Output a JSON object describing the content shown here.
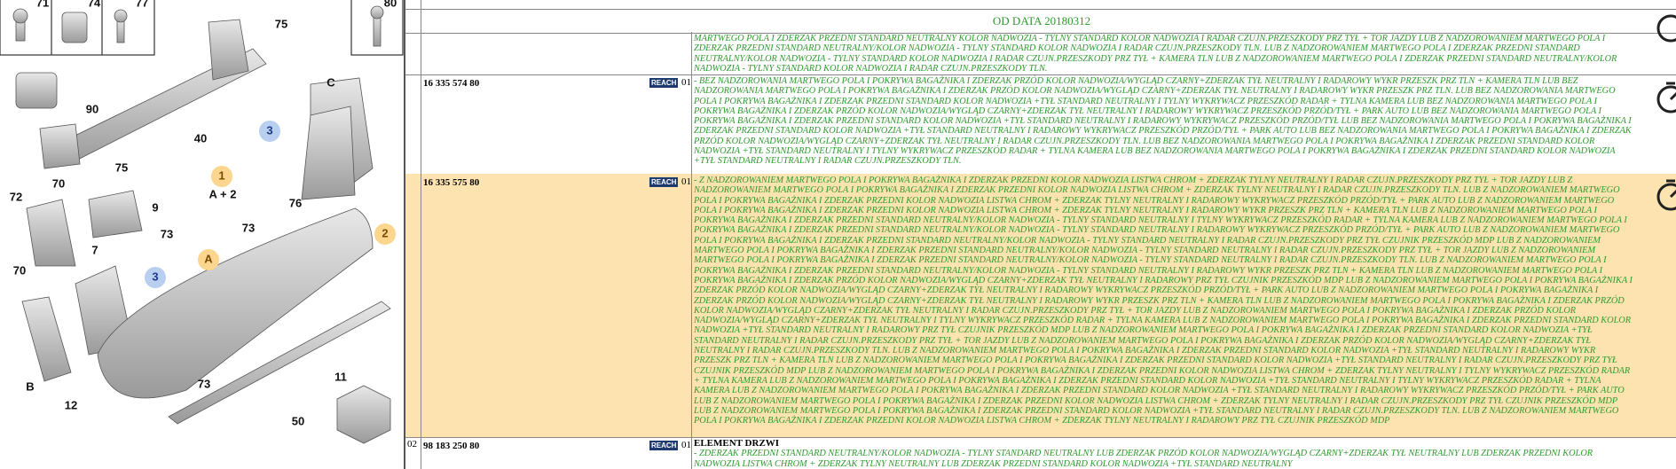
{
  "header": {
    "date_label": "OD DATA 20180312"
  },
  "diagram": {
    "labels": [
      "71",
      "74",
      "77",
      "80",
      "75",
      "90",
      "40",
      "75",
      "C",
      "3",
      "1",
      "A + 2",
      "70",
      "72",
      "9",
      "76",
      "73",
      "73",
      "7",
      "70",
      "3",
      "A",
      "2",
      "B",
      "73",
      "11",
      "12",
      "50"
    ]
  },
  "table": {
    "rows": [
      {
        "description": "MARTWEGO POLA I ZDERZAK PRZEDNI STANDARD NEUTRALNY KOLOR NADWOZIA - TYLNY STANDARD KOLOR NADWOZIA I RADAR CZUJN.PRZESZKODY PRZ TYŁ + TOR JAZDY LUB Z NADZOROWANIEM MARTWEGO POLA I ZDERZAK PRZEDNI STANDARD NEUTRALNY/KOLOR NADWOZIA - TYLNY STANDARD KOLOR NADWOZIA I RADAR CZUJN.PRZESZKODY TLN. LUB Z NADZOROWANIEM MARTWEGO POLA I ZDERZAK PRZEDNI STANDARD NEUTRALNY/KOLOR NADWOZIA - TYLNY STANDARD KOLOR NADWOZIA I RADAR CZUJN.PRZESZKODY PRZ TYŁ + KAMERA TLN LUB Z NADZOROWANIEM MARTWEGO POLA I ZDERZAK PRZEDNI STANDARD NEUTRALNY/KOLOR NADWOZIA - TYLNY STANDARD KOLOR NADWOZIA I RADAR CZUJN.PRZESZKODY TLN."
      },
      {
        "part_number": "16 335 574 80",
        "reach": "REACH",
        "variant": "01",
        "description": "- BEZ NADZOROWANIA MARTWEGO POLA I POKRYWA BAGAŻNIKA I ZDERZAK PRZÓD KOLOR NADWOZIA/WYGLĄD CZARNY+ZDERZAK TYŁ NEUTRALNY I RADAROWY WYKR PRZESZK PRZ TLN + KAMERA TLN LUB BEZ NADZOROWANIA MARTWEGO POLA I POKRYWA BAGAŻNIKA I ZDERZAK PRZÓD KOLOR NADWOZIA/WYGLĄD CZARNY+ZDERZAK TYŁ NEUTRALNY I RADAROWY WYKR PRZESZK PRZ TLN. LUB BEZ NADZOROWANIA MARTWEGO POLA I POKRYWA BAGAŻNIKA I ZDERZAK PRZEDNI STANDARD KOLOR NADWOZIA +TYŁ STANDARD NEUTRALNY I TYLNY WYKRYWACZ PRZESZKÓD RADAR + TYLNA KAMERA LUB BEZ NADZOROWANIA MARTWEGO POLA I POKRYWA BAGAŻNIKA I ZDERZAK PRZÓD KOLOR NADWOZIA/WYGLĄD CZARNY+ZDERZAK TYŁ NEUTRALNY I RADAROWY WYKRYWACZ PRZESZKÓD PRZÓD/TYŁ + PARK AUTO LUB BEZ NADZOROWANIA MARTWEGO POLA I POKRYWA BAGAŻNIKA I ZDERZAK PRZEDNI STANDARD KOLOR NADWOZIA +TYŁ STANDARD NEUTRALNY I RADAROWY WYKRYWACZ PRZESZKÓD PRZÓD/TYŁ LUB BEZ NADZOROWANIA MARTWEGO POLA I POKRYWA BAGAŻNIKA I ZDERZAK PRZEDNI STANDARD KOLOR NADWOZIA +TYŁ STANDARD NEUTRALNY I RADAROWY WYKRYWACZ PRZESZKÓD PRZÓD/TYŁ + PARK AUTO LUB BEZ NADZOROWANIA MARTWEGO POLA I POKRYWA BAGAŻNIKA I ZDERZAK PRZÓD KOLOR NADWOZIA/WYGLĄD CZARNY+ZDERZAK TYŁ NEUTRALNY I RADAR CZUJN.PRZESZKODY TLN. LUB BEZ NADZOROWANIA MARTWEGO POLA I POKRYWA BAGAŻNIKA I ZDERZAK PRZEDNI STANDARD KOLOR NADWOZIA +TYŁ STANDARD NEUTRALNY I TYLNY WYKRYWACZ PRZESZKÓD RADAR + TYLNA KAMERA LUB BEZ NADZOROWANIA MARTWEGO POLA I POKRYWA BAGAŻNIKA I ZDERZAK PRZEDNI STANDARD KOLOR NADWOZIA +TYŁ STANDARD NEUTRALNY I RADAR CZUJN.PRZESZKODY TLN."
      },
      {
        "part_number": "16 335 575 80",
        "reach": "REACH",
        "variant": "01",
        "highlight": true,
        "description": "- Z NADZOROWANIEM MARTWEGO POLA I POKRYWA BAGAŻNIKA I ZDERZAK PRZEDNI KOLOR NADWOZIA LISTWA CHROM + ZDERZAK TYLNY NEUTRALNY I RADAR CZUJN.PRZESZKODY PRZ TYŁ + TOR JAZDY LUB Z NADZOROWANIEM MARTWEGO POLA I POKRYWA BAGAŻNIKA I ZDERZAK PRZEDNI KOLOR NADWOZIA LISTWA CHROM + ZDERZAK TYLNY NEUTRALNY I RADAR CZUJN.PRZESZKODY TLN. LUB Z NADZOROWANIEM MARTWEGO POLA I POKRYWA BAGAŻNIKA I ZDERZAK PRZEDNI KOLOR NADWOZIA LISTWA CHROM + ZDERZAK TYLNY NEUTRALNY I RADAROWY WYKRYWACZ PRZESZKÓD PRZÓD/TYŁ + PARK AUTO LUB Z NADZOROWANIEM MARTWEGO POLA I POKRYWA BAGAŻNIKA I ZDERZAK PRZEDNI KOLOR NADWOZIA LISTWA CHROM + ZDERZAK TYLNY NEUTRALNY I RADAROWY WYKR PRZESZK PRZ TLN + KAMERA TLN LUB Z NADZOROWANIEM MARTWEGO POLA I POKRYWA BAGAŻNIKA I ZDERZAK PRZEDNI STANDARD NEUTRALNY/KOLOR NADWOZIA - TYLNY STANDARD NEUTRALNY I TYLNY WYKRYWACZ PRZESZKÓD RADAR + TYLNA KAMERA LUB Z NADZOROWANIEM MARTWEGO POLA I POKRYWA BAGAŻNIKA I ZDERZAK PRZEDNI STANDARD NEUTRALNY/KOLOR NADWOZIA - TYLNY STANDARD NEUTRALNY I RADAROWY WYKRYWACZ PRZESZKÓD PRZÓD/TYŁ + PARK AUTO LUB Z NADZOROWANIEM MARTWEGO POLA I POKRYWA BAGAŻNIKA I ZDERZAK PRZEDNI STANDARD NEUTRALNY/KOLOR NADWOZIA - TYLNY STANDARD NEUTRALNY I RADAR CZUJN.PRZESZKODY PRZ TYŁ CZUJNIK PRZESZKÓD MDP LUB Z NADZOROWANIEM MARTWEGO POLA I POKRYWA BAGAŻNIKA I ZDERZAK PRZEDNI STANDARD NEUTRALNY/KOLOR NADWOZIA - TYLNY STANDARD NEUTRALNY I RADAR CZUJN.PRZESZKODY PRZ TYŁ + TOR JAZDY LUB Z NADZOROWANIEM MARTWEGO POLA I POKRYWA BAGAŻNIKA I ZDERZAK PRZEDNI STANDARD NEUTRALNY/KOLOR NADWOZIA - TYLNY STANDARD NEUTRALNY I RADAR CZUJN.PRZESZKODY TLN. LUB Z NADZOROWANIEM MARTWEGO POLA I POKRYWA BAGAŻNIKA I ZDERZAK PRZEDNI STANDARD NEUTRALNY/KOLOR NADWOZIA - TYLNY STANDARD NEUTRALNY I RADAROWY WYKR PRZESZK PRZ TLN + KAMERA TLN LUB Z NADZOROWANIEM MARTWEGO POLA I POKRYWA BAGAŻNIKA I ZDERZAK PRZÓD KOLOR NADWOZIA/WYGLĄD CZARNY+ZDERZAK TYŁ NEUTRALNY I RADAROWY PRZ TYŁ CZUJNIK PRZESZKÓD MDP LUB Z NADZOROWANIEM MARTWEGO POLA I POKRYWA BAGAŻNIKA I ZDERZAK PRZÓD KOLOR NADWOZIA/WYGLĄD CZARNY+ZDERZAK TYŁ NEUTRALNY I RADAROWY WYKRYWACZ PRZESZKÓD PRZÓD/TYŁ + PARK AUTO LUB Z NADZOROWANIEM MARTWEGO POLA I POKRYWA BAGAŻNIKA I ZDERZAK PRZÓD KOLOR NADWOZIA/WYGLĄD CZARNY+ZDERZAK TYŁ NEUTRALNY I RADAROWY WYKR PRZESZK PRZ TLN + KAMERA TLN LUB Z NADZOROWANIEM MARTWEGO POLA I POKRYWA BAGAŻNIKA I ZDERZAK PRZÓD KOLOR NADWOZIA/WYGLĄD CZARNY+ZDERZAK TYŁ NEUTRALNY I RADAR CZUJN.PRZESZKODY PRZ TYŁ + TOR JAZDY LUB Z NADZOROWANIEM MARTWEGO POLA I POKRYWA BAGAŻNIKA I ZDERZAK PRZÓD KOLOR NADWOZIA/WYGLĄD CZARNY+ZDERZAK TYŁ NEUTRALNY I TYLNY WYKRYWACZ PRZESZKÓD RADAR + TYLNA KAMERA LUB Z NADZOROWANIEM MARTWEGO POLA I POKRYWA BAGAŻNIKA I ZDERZAK PRZEDNI STANDARD KOLOR NADWOZIA +TYŁ STANDARD NEUTRALNY I RADAROWY PRZ TYŁ CZUJNIK PRZESZKÓD MDP LUB Z NADZOROWANIEM MARTWEGO POLA I POKRYWA BAGAŻNIKA I ZDERZAK PRZEDNI STANDARD KOLOR NADWOZIA +TYŁ STANDARD NEUTRALNY I RADAR CZUJN.PRZESZKODY PRZ TYŁ + TOR JAZDY LUB Z NADZOROWANIEM MARTWEGO POLA I POKRYWA BAGAŻNIKA I ZDERZAK PRZÓD KOLOR NADWOZIA/WYGLĄD CZARNY+ZDERZAK TYŁ NEUTRALNY I RADAR CZUJN.PRZESZKODY TLN. LUB Z NADZOROWANIEM MARTWEGO POLA I POKRYWA BAGAŻNIKA I ZDERZAK PRZEDNI STANDARD KOLOR NADWOZIA +TYŁ STANDARD NEUTRALNY I RADAROWY WYKR PRZESZK PRZ TLN + KAMERA TLN LUB Z NADZOROWANIEM MARTWEGO POLA I POKRYWA BAGAŻNIKA I ZDERZAK PRZEDNI STANDARD KOLOR NADWOZIA +TYŁ STANDARD NEUTRALNY I RADAR CZUJN.PRZESZKODY PRZ TYŁ CZUJNIK PRZESZKÓD MDP LUB Z NADZOROWANIEM MARTWEGO POLA I POKRYWA BAGAŻNIKA I ZDERZAK PRZEDNI KOLOR NADWOZIA LISTWA CHROM + ZDERZAK TYLNY NEUTRALNY I TYLNY WYKRYWACZ PRZESZKÓD RADAR + TYLNA KAMERA LUB Z NADZOROWANIEM MARTWEGO POLA I POKRYWA BAGAŻNIKA I ZDERZAK PRZEDNI STANDARD KOLOR NADWOZIA +TYŁ STANDARD NEUTRALNY I TYLNY WYKRYWACZ PRZESZKÓD RADAR + TYLNA KAMERA LUB Z NADZOROWANIEM MARTWEGO POLA I POKRYWA BAGAŻNIKA I ZDERZAK PRZEDNI STANDARD KOLOR NADWOZIA +TYŁ STANDARD NEUTRALNY I RADAROWY WYKRYWACZ PRZESZKÓD PRZÓD/TYŁ + PARK AUTO LUB Z NADZOROWANIEM MARTWEGO POLA I POKRYWA BAGAŻNIKA I ZDERZAK PRZEDNI KOLOR NADWOZIA LISTWA CHROM + ZDERZAK TYLNY NEUTRALNY I RADAR CZUJN.PRZESZKODY PRZ TYŁ CZUJNIK PRZESZKÓD MDP LUB Z NADZOROWANIEM MARTWEGO POLA I POKRYWA BAGAŻNIKA I ZDERZAK PRZEDNI STANDARD KOLOR NADWOZIA +TYŁ STANDARD NEUTRALNY I RADAR CZUJN.PRZESZKODY TLN. LUB Z NADZOROWANIEM MARTWEGO POLA I POKRYWA BAGAŻNIKA I ZDERZAK PRZEDNI KOLOR NADWOZIA LISTWA CHROM + ZDERZAK TYLNY NEUTRALNY I RADAROWY PRZ TYŁ CZUJNIK PRZESZKÓD MDP"
      },
      {
        "index": "02",
        "part_number": "98 183 250 80",
        "reach": "REACH",
        "variant": "01",
        "title": "ELEMENT DRZWI",
        "description": "- ZDERZAK PRZEDNI STANDARD NEUTRALNY/KOLOR NADWOZIA - TYLNY STANDARD NEUTRALNY LUB ZDERZAK PRZÓD KOLOR NADWOZIA/WYGLĄD CZARNY+ZDERZAK TYŁ NEUTRALNY LUB ZDERZAK PRZEDNI KOLOR NADWOZIA LISTWA CHROM + ZDERZAK TYLNY NEUTRALNY LUB ZDERZAK PRZEDNI STANDARD KOLOR NADWOZIA +TYŁ STANDARD NEUTRALNY"
      }
    ]
  }
}
